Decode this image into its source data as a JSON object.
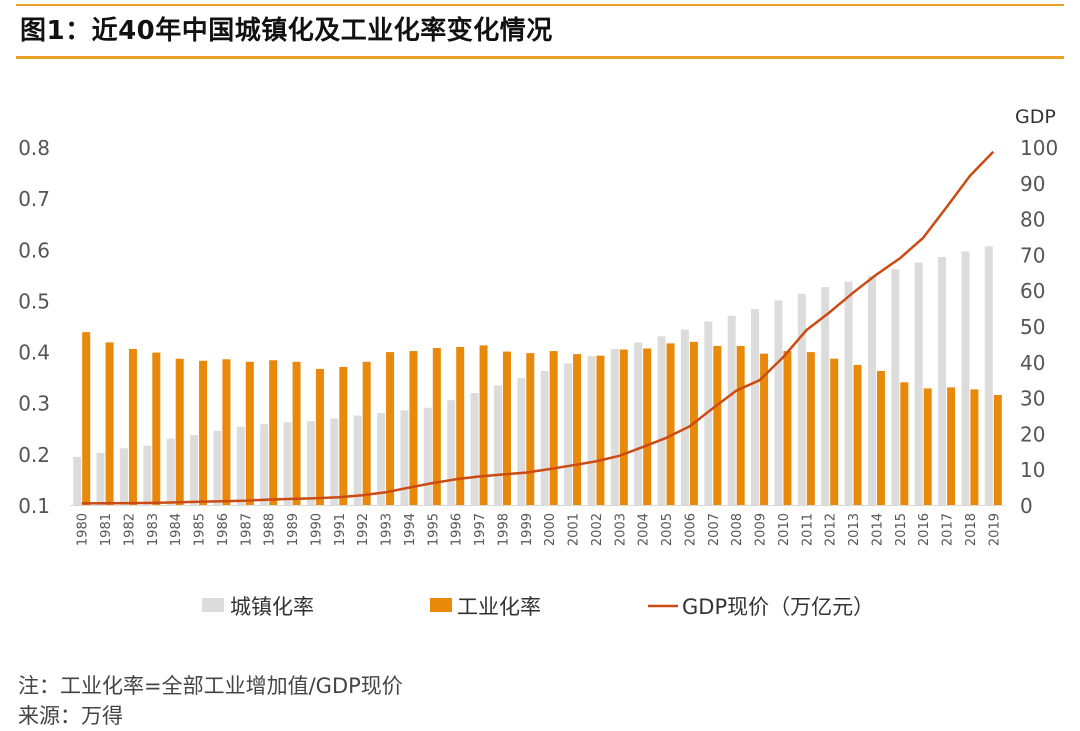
{
  "title": "图1：近40年中国城镇化及工业化率变化情况",
  "notes": {
    "note": "注：工业化率=全部工业增加值/GDP现价",
    "source": "来源：万得"
  },
  "colors": {
    "accent": "#e8a126",
    "urbanization": "#dcdcdc",
    "industrialization": "#e8890c",
    "gdp": "#cc4b12"
  },
  "chart_data": {
    "type": "bar",
    "categories": [
      "1980",
      "1981",
      "1982",
      "1983",
      "1984",
      "1985",
      "1986",
      "1987",
      "1988",
      "1989",
      "1990",
      "1991",
      "1992",
      "1993",
      "1994",
      "1995",
      "1996",
      "1997",
      "1998",
      "1999",
      "2000",
      "2001",
      "2002",
      "2003",
      "2004",
      "2005",
      "2006",
      "2007",
      "2008",
      "2009",
      "2010",
      "2011",
      "2012",
      "2013",
      "2014",
      "2015",
      "2016",
      "2017",
      "2018",
      "2019"
    ],
    "series": [
      {
        "name": "城镇化率",
        "type": "bar",
        "axis": "left",
        "values": [
          0.194,
          0.202,
          0.211,
          0.216,
          0.23,
          0.237,
          0.245,
          0.253,
          0.258,
          0.262,
          0.264,
          0.269,
          0.275,
          0.28,
          0.285,
          0.29,
          0.305,
          0.319,
          0.334,
          0.348,
          0.362,
          0.377,
          0.391,
          0.405,
          0.418,
          0.43,
          0.443,
          0.459,
          0.47,
          0.483,
          0.5,
          0.513,
          0.526,
          0.537,
          0.548,
          0.561,
          0.574,
          0.585,
          0.596,
          0.606
        ]
      },
      {
        "name": "工业化率",
        "type": "bar",
        "axis": "left",
        "values": [
          0.438,
          0.418,
          0.405,
          0.398,
          0.386,
          0.382,
          0.385,
          0.38,
          0.383,
          0.38,
          0.366,
          0.37,
          0.38,
          0.399,
          0.401,
          0.407,
          0.409,
          0.412,
          0.4,
          0.397,
          0.401,
          0.395,
          0.392,
          0.404,
          0.406,
          0.416,
          0.419,
          0.411,
          0.411,
          0.396,
          0.401,
          0.399,
          0.386,
          0.374,
          0.362,
          0.34,
          0.328,
          0.33,
          0.326,
          0.315
        ]
      },
      {
        "name": "GDP现价（万亿元）",
        "type": "line",
        "axis": "right",
        "values": [
          0.46,
          0.49,
          0.54,
          0.6,
          0.72,
          0.9,
          1.03,
          1.21,
          1.51,
          1.71,
          1.87,
          2.18,
          2.7,
          3.56,
          4.86,
          6.13,
          7.18,
          7.97,
          8.52,
          9.06,
          10.03,
          11.09,
          12.17,
          13.74,
          16.18,
          18.73,
          21.94,
          27.01,
          31.92,
          34.85,
          41.21,
          48.79,
          53.86,
          59.3,
          64.36,
          68.89,
          74.64,
          83.2,
          91.93,
          98.65
        ]
      }
    ],
    "y_left": {
      "ylim": [
        0.1,
        0.8
      ],
      "ticks": [
        "0.1",
        "0.2",
        "0.3",
        "0.4",
        "0.5",
        "0.6",
        "0.7",
        "0.8"
      ]
    },
    "y_right": {
      "label": "GDP",
      "ylim": [
        0,
        100
      ],
      "ticks": [
        "0",
        "10",
        "20",
        "30",
        "40",
        "50",
        "60",
        "70",
        "80",
        "90",
        "100"
      ]
    },
    "grid": false,
    "legend": "bottom"
  }
}
